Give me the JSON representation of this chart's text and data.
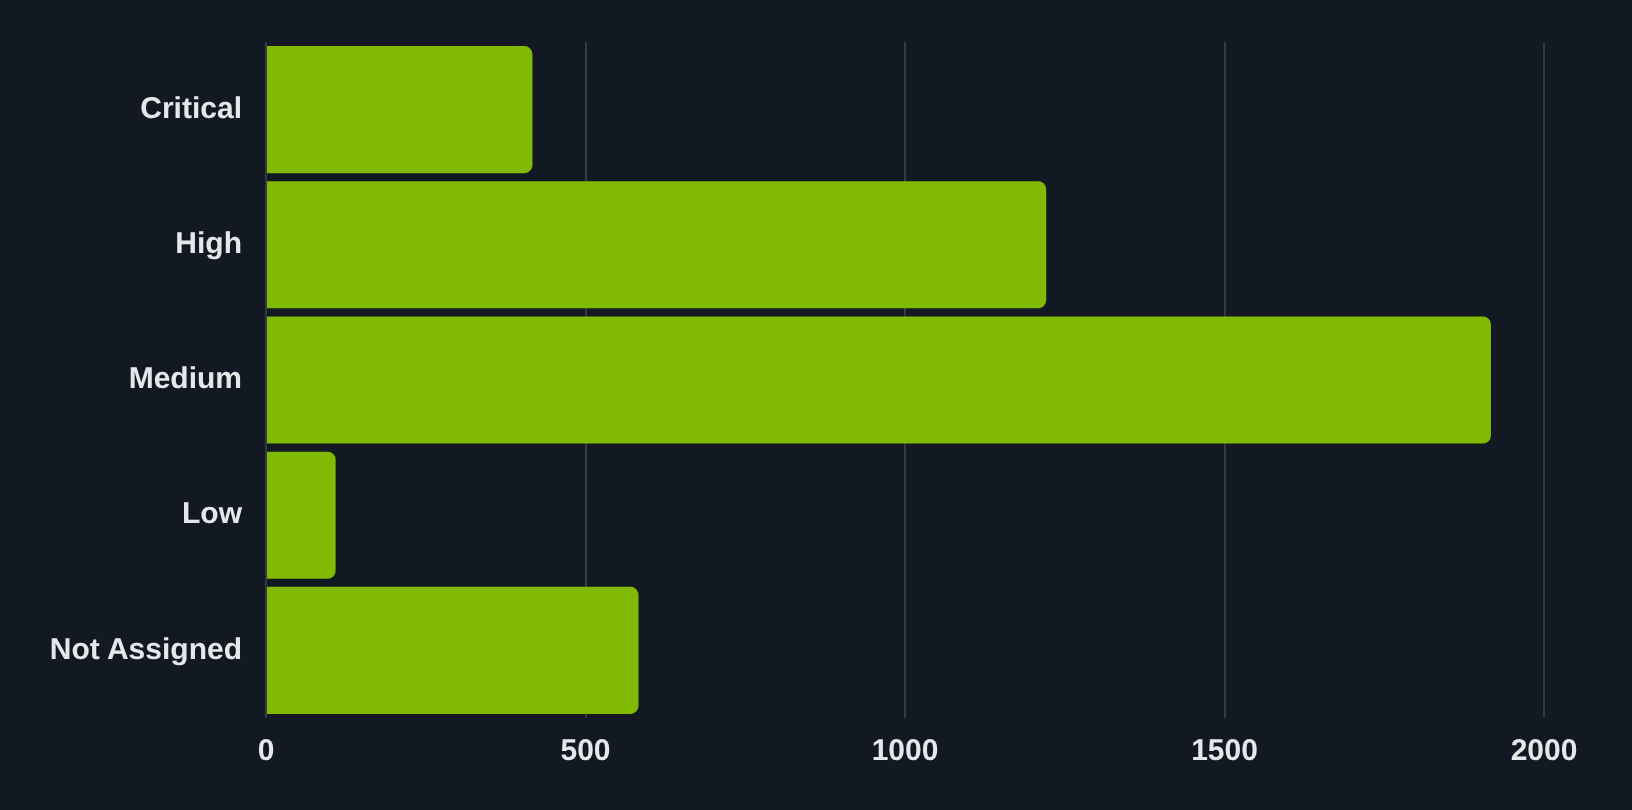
{
  "chart_data": {
    "type": "bar",
    "orientation": "horizontal",
    "categories": [
      "Critical",
      "High",
      "Medium",
      "Low",
      "Not Assigned"
    ],
    "values": [
      417,
      1221,
      1917,
      109,
      583
    ],
    "color": "#80ba03",
    "xlim": [
      0,
      2000
    ],
    "xticks": [
      0,
      500,
      1000,
      1500,
      2000
    ],
    "grid": "x"
  }
}
